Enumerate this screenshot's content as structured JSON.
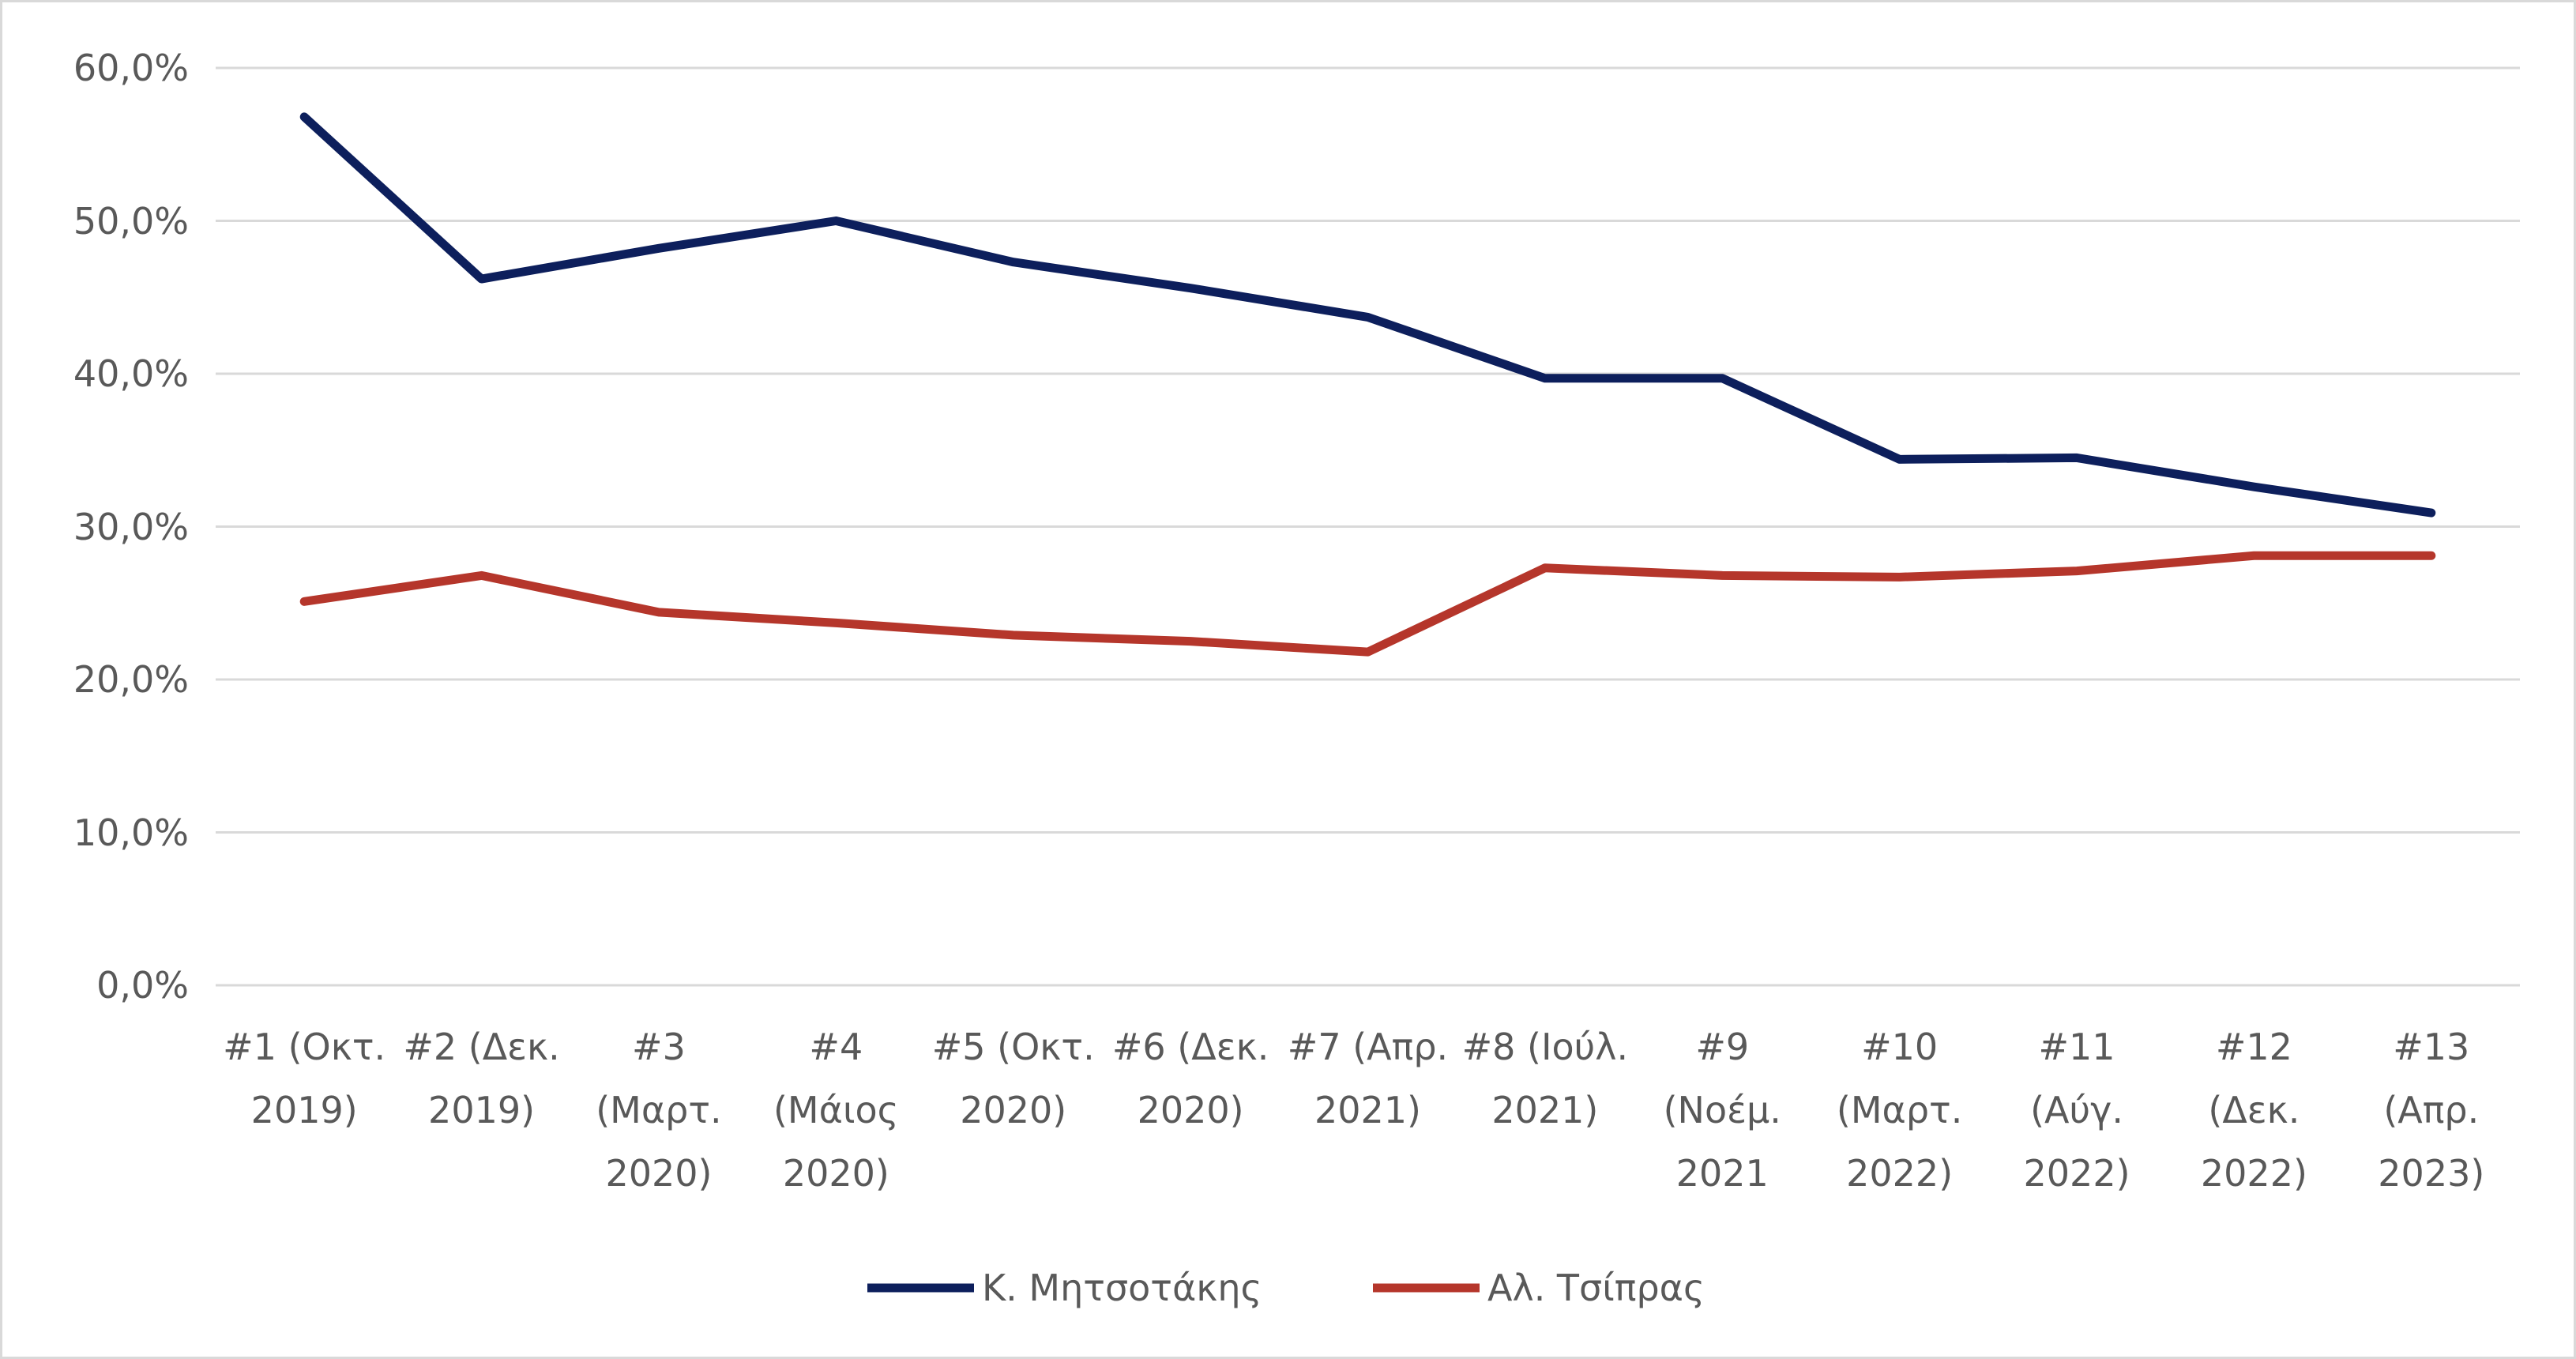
{
  "chart_data": {
    "type": "line",
    "categories": [
      "#1 (Οκτ. 2019)",
      "#2 (Δεκ. 2019)",
      "#3 (Μαρτ. 2020)",
      "#4 (Μάιος 2020)",
      "#5 (Οκτ. 2020)",
      "#6 (Δεκ. 2020)",
      "#7 (Απρ. 2021)",
      "#8 (Ιούλ. 2021)",
      "#9 (Νοέμ. 2021",
      "#10 (Μαρτ. 2022)",
      "#11 (Αύγ. 2022)",
      "#12 (Δεκ. 2022)",
      "#13 (Απρ. 2023)"
    ],
    "series": [
      {
        "name": "Κ. Μητσοτάκης",
        "color": "#0d1f5c",
        "values": [
          56.8,
          46.2,
          48.2,
          50.0,
          47.3,
          45.6,
          43.7,
          39.7,
          39.7,
          34.4,
          34.5,
          32.6,
          30.9
        ]
      },
      {
        "name": "Αλ. Τσίπρας",
        "color": "#b5362b",
        "values": [
          25.1,
          26.8,
          24.4,
          23.7,
          22.9,
          22.5,
          21.8,
          27.3,
          26.8,
          26.7,
          27.1,
          28.1,
          28.1
        ]
      }
    ],
    "ylim": [
      0,
      60
    ],
    "yticks": [
      {
        "value": 0,
        "label": "0,0%"
      },
      {
        "value": 10,
        "label": "10,0%"
      },
      {
        "value": 20,
        "label": "20,0%"
      },
      {
        "value": 30,
        "label": "30,0%"
      },
      {
        "value": 40,
        "label": "40,0%"
      },
      {
        "value": 50,
        "label": "50,0%"
      },
      {
        "value": 60,
        "label": "60,0%"
      }
    ],
    "grid": true,
    "legend": "bottom"
  }
}
